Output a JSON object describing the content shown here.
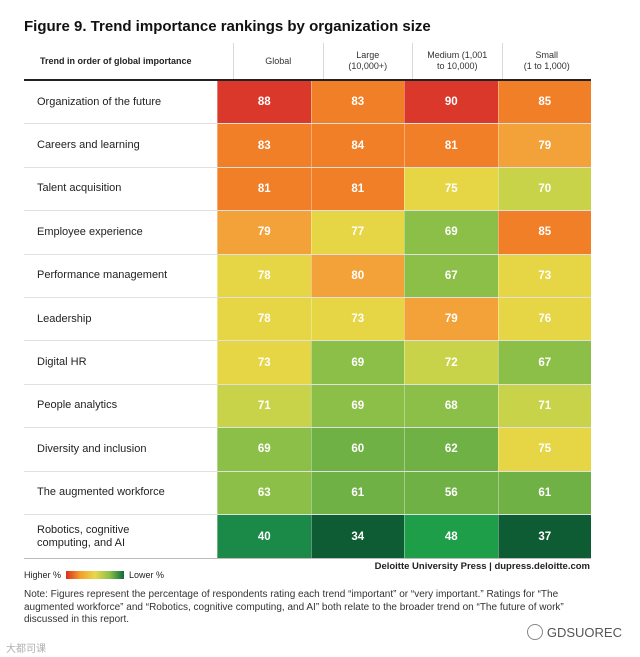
{
  "title": "Figure 9. Trend importance rankings by organization size",
  "chart_data": {
    "type": "heatmap",
    "title": "Figure 9. Trend importance rankings by organization size",
    "row_header": "Trend in order of global importance",
    "columns": [
      "Global",
      "Large\n(10,000+)",
      "Medium (1,001\nto 10,000)",
      "Small\n(1 to 1,000)"
    ],
    "rows": [
      {
        "label": "Organization of the future",
        "values": [
          88,
          83,
          90,
          85
        ]
      },
      {
        "label": "Careers and learning",
        "values": [
          83,
          84,
          81,
          79
        ]
      },
      {
        "label": "Talent acquisition",
        "values": [
          81,
          81,
          75,
          70
        ]
      },
      {
        "label": "Employee experience",
        "values": [
          79,
          77,
          69,
          85
        ]
      },
      {
        "label": "Performance management",
        "values": [
          78,
          80,
          67,
          73
        ]
      },
      {
        "label": "Leadership",
        "values": [
          78,
          73,
          79,
          76
        ]
      },
      {
        "label": "Digital HR",
        "values": [
          73,
          69,
          72,
          67
        ]
      },
      {
        "label": "People analytics",
        "values": [
          71,
          69,
          68,
          71
        ]
      },
      {
        "label": "Diversity and inclusion",
        "values": [
          69,
          60,
          62,
          75
        ]
      },
      {
        "label": "The augmented workforce",
        "values": [
          63,
          61,
          56,
          61
        ]
      },
      {
        "label": "Robotics, cognitive computing, and AI",
        "values": [
          40,
          34,
          48,
          37
        ]
      }
    ],
    "legend": {
      "high_label": "Higher %",
      "low_label": "Lower %"
    }
  },
  "colors": {
    "very_high": "#d9382a",
    "high": "#f07f28",
    "upper_mid": "#f3a23a",
    "mid": "#e6d545",
    "lower_mid": "#c9d34a",
    "low": "#8cbf48",
    "lower": "#6fb144",
    "very_low_a": "#1f9e4a",
    "very_low_b": "#1b8a48",
    "lowest": "#0d5c33"
  },
  "source": "Deloitte University Press  |  dupress.deloitte.com",
  "note": "Note: Figures represent the percentage of respondents rating each trend “important” or “very important.” Ratings for “The augmented workforce” and “Robotics, cognitive computing, and AI” both relate to the broader trend on “The future of work” discussed in this report.",
  "watermark_left": "大都司课",
  "watermark_right": "GDSUOREC"
}
